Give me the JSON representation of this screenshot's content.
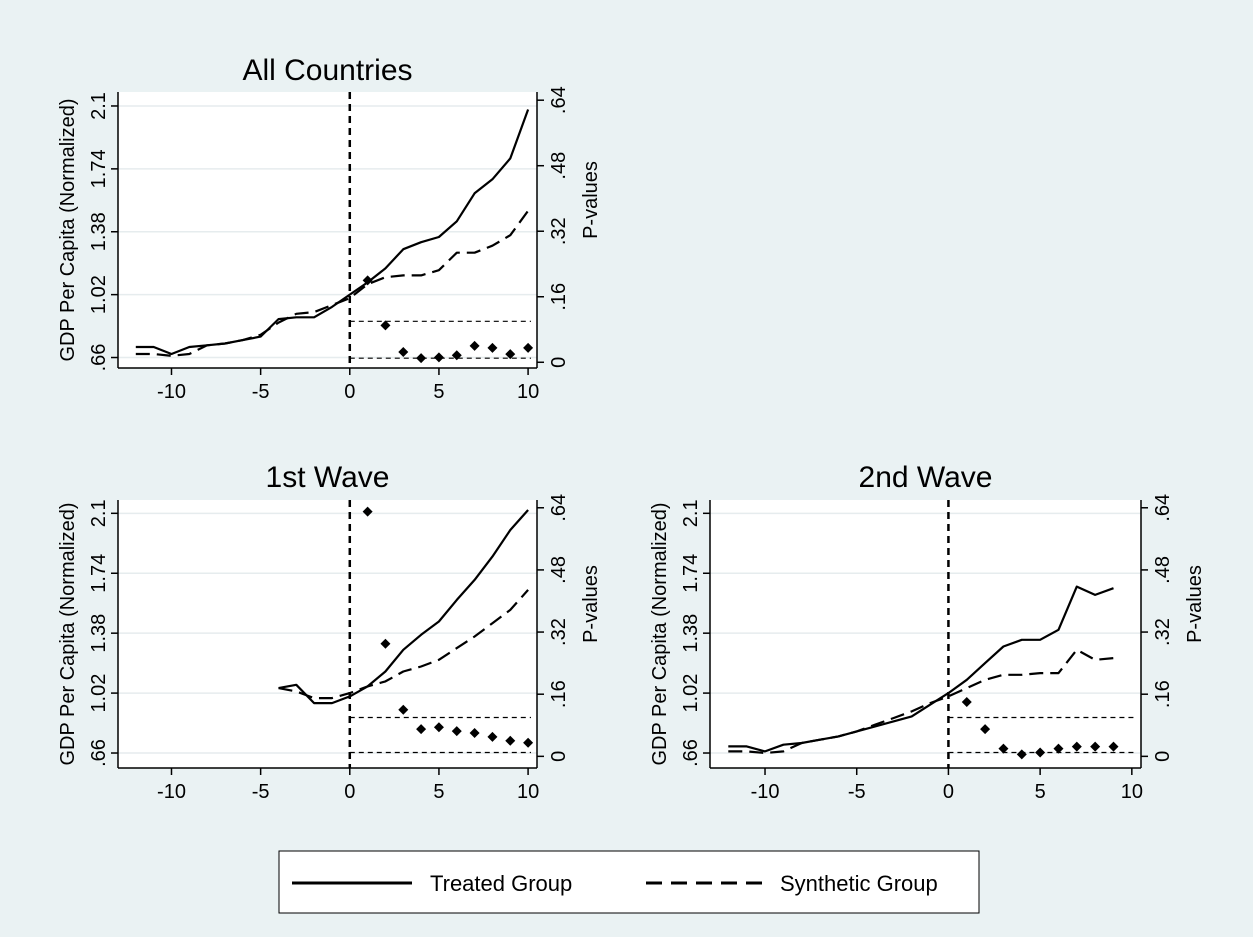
{
  "chart_data": [
    {
      "type": "line",
      "title": "All Countries",
      "ylabel": "GDP Per Capita (Normalized)",
      "y2label": "P-values",
      "xticks": [
        -10,
        -5,
        0,
        5,
        10
      ],
      "yticks": [
        ".66",
        "1.02",
        "1.38",
        "1.74",
        "2.1"
      ],
      "y2ticks": [
        "0",
        ".16",
        ".32",
        ".48",
        ".64"
      ],
      "xlim": [
        -13,
        10.5
      ],
      "ylim": [
        0.6,
        2.18
      ],
      "y2lim": [
        -0.014,
        0.66
      ],
      "vline_x": 0,
      "threshold_lines": [
        0.1,
        0.01
      ],
      "series": [
        {
          "name": "Treated Group",
          "style": "solid",
          "x": [
            -12,
            -11,
            -10,
            -9,
            -8,
            -7,
            -6,
            -5,
            -4,
            -3,
            -2,
            -1,
            0,
            1,
            2,
            3,
            4,
            5,
            6,
            7,
            8,
            9,
            10
          ],
          "y": [
            0.72,
            0.72,
            0.68,
            0.72,
            0.73,
            0.74,
            0.76,
            0.78,
            0.88,
            0.89,
            0.89,
            0.95,
            1.02,
            1.09,
            1.17,
            1.28,
            1.32,
            1.35,
            1.44,
            1.6,
            1.68,
            1.8,
            2.08
          ]
        },
        {
          "name": "Synthetic Group",
          "style": "dashed",
          "x": [
            -12,
            -11,
            -10,
            -9,
            -8,
            -7,
            -6,
            -5,
            -4,
            -3,
            -2,
            -1,
            0,
            1,
            2,
            3,
            4,
            5,
            6,
            7,
            8,
            9,
            10
          ],
          "y": [
            0.68,
            0.68,
            0.67,
            0.68,
            0.73,
            0.74,
            0.76,
            0.79,
            0.86,
            0.91,
            0.92,
            0.96,
            1.0,
            1.08,
            1.12,
            1.13,
            1.13,
            1.16,
            1.26,
            1.26,
            1.3,
            1.36,
            1.5
          ]
        },
        {
          "name": "P-values",
          "style": "markers",
          "axis": "right",
          "x": [
            1,
            2,
            3,
            4,
            5,
            6,
            7,
            8,
            9,
            10
          ],
          "y": [
            0.2,
            0.09,
            0.025,
            0.01,
            0.012,
            0.017,
            0.04,
            0.035,
            0.02,
            0.035
          ]
        }
      ]
    },
    {
      "type": "line",
      "title": "1st Wave",
      "ylabel": "GDP Per Capita (Normalized)",
      "y2label": "P-values",
      "xticks": [
        -10,
        -5,
        0,
        5,
        10
      ],
      "yticks": [
        ".66",
        "1.02",
        "1.38",
        "1.74",
        "2.1"
      ],
      "y2ticks": [
        "0",
        ".16",
        ".32",
        ".48",
        ".64"
      ],
      "xlim": [
        -13,
        10.5
      ],
      "ylim": [
        0.57,
        2.18
      ],
      "y2lim": [
        -0.03,
        0.66
      ],
      "vline_x": 0,
      "threshold_lines": [
        0.1,
        0.01
      ],
      "series": [
        {
          "name": "Treated Group",
          "style": "solid",
          "x": [
            -4,
            -3,
            -2,
            -1,
            0,
            1,
            2,
            3,
            4,
            5,
            6,
            7,
            8,
            9,
            10
          ],
          "y": [
            1.05,
            1.07,
            0.96,
            0.96,
            1.0,
            1.06,
            1.15,
            1.28,
            1.37,
            1.45,
            1.58,
            1.7,
            1.84,
            2.0,
            2.12
          ]
        },
        {
          "name": "Synthetic Group",
          "style": "dashed",
          "x": [
            -4,
            -3,
            -2,
            -1,
            0,
            1,
            2,
            3,
            4,
            5,
            6,
            7,
            8,
            9,
            10
          ],
          "y": [
            1.05,
            1.03,
            0.99,
            0.99,
            1.02,
            1.06,
            1.09,
            1.15,
            1.18,
            1.22,
            1.29,
            1.36,
            1.44,
            1.52,
            1.64
          ]
        },
        {
          "name": "P-values",
          "style": "markers",
          "axis": "right",
          "x": [
            1,
            2,
            3,
            4,
            5,
            6,
            7,
            8,
            9,
            10
          ],
          "y": [
            0.63,
            0.29,
            0.12,
            0.07,
            0.075,
            0.065,
            0.06,
            0.05,
            0.04,
            0.035
          ]
        }
      ]
    },
    {
      "type": "line",
      "title": "2nd Wave",
      "ylabel": "GDP Per Capita (Normalized)",
      "y2label": "P-values",
      "xticks": [
        -10,
        -5,
        0,
        5,
        10
      ],
      "yticks": [
        ".66",
        "1.02",
        "1.38",
        "1.74",
        "2.1"
      ],
      "y2ticks": [
        "0",
        ".16",
        ".32",
        ".48",
        ".64"
      ],
      "xlim": [
        -13,
        10.5
      ],
      "ylim": [
        0.57,
        2.18
      ],
      "y2lim": [
        -0.03,
        0.66
      ],
      "vline_x": 0,
      "threshold_lines": [
        0.1,
        0.01
      ],
      "series": [
        {
          "name": "Treated Group",
          "style": "solid",
          "x": [
            -12,
            -11,
            -10,
            -9,
            -8,
            -7,
            -6,
            -5,
            -4,
            -3,
            -2,
            -1,
            0,
            1,
            2,
            3,
            4,
            5,
            6,
            7,
            8,
            9
          ],
          "y": [
            0.7,
            0.7,
            0.67,
            0.71,
            0.72,
            0.74,
            0.76,
            0.79,
            0.82,
            0.85,
            0.88,
            0.95,
            1.02,
            1.1,
            1.2,
            1.3,
            1.34,
            1.34,
            1.4,
            1.66,
            1.61,
            1.65
          ]
        },
        {
          "name": "Synthetic Group",
          "style": "dashed",
          "x": [
            -12,
            -11,
            -10,
            -9,
            -8,
            -7,
            -6,
            -5,
            -4,
            -3,
            -2,
            -1,
            0,
            1,
            2,
            3,
            4,
            5,
            6,
            7,
            8,
            9
          ],
          "y": [
            0.67,
            0.67,
            0.66,
            0.67,
            0.72,
            0.74,
            0.76,
            0.79,
            0.83,
            0.87,
            0.91,
            0.96,
            1.0,
            1.05,
            1.1,
            1.13,
            1.13,
            1.14,
            1.14,
            1.28,
            1.22,
            1.23
          ]
        },
        {
          "name": "P-values",
          "style": "markers",
          "axis": "right",
          "x": [
            1,
            2,
            3,
            4,
            5,
            6,
            7,
            8,
            9
          ],
          "y": [
            0.14,
            0.07,
            0.02,
            0.005,
            0.01,
            0.02,
            0.025,
            0.025,
            0.025
          ]
        }
      ]
    }
  ],
  "legend": {
    "items": [
      {
        "label": "Treated Group",
        "style": "solid"
      },
      {
        "label": "Synthetic Group",
        "style": "dashed"
      }
    ]
  },
  "colors": {
    "background": "#eaf2f3",
    "plot_background": "#ffffff",
    "gridline": "#e6ecee",
    "ink": "#000000"
  }
}
